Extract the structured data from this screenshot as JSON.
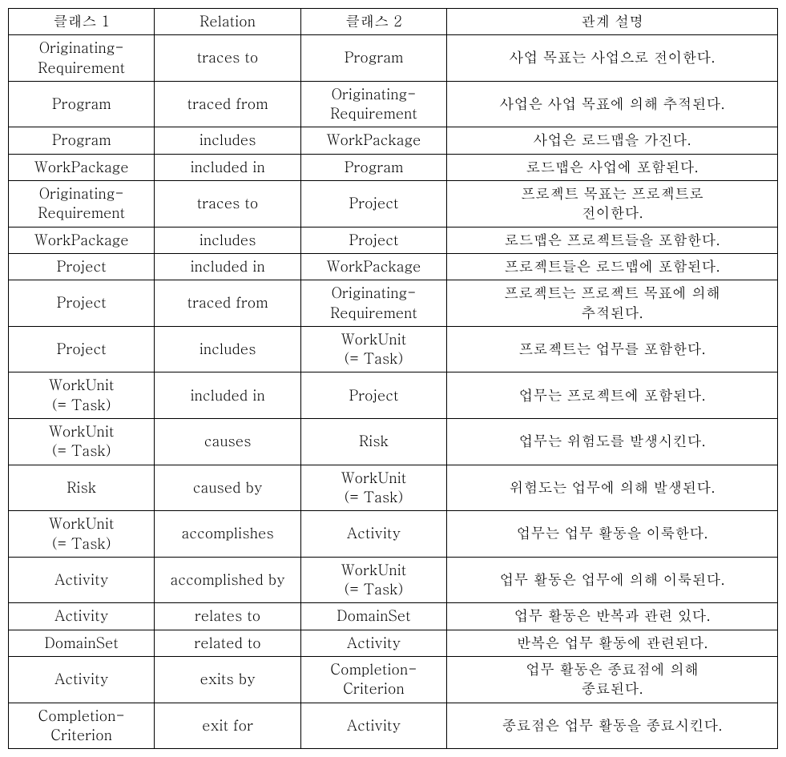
{
  "table": {
    "headers": {
      "class1": "클래스 1",
      "relation": "Relation",
      "class2": "클래스 2",
      "description": "관계 설명"
    },
    "rows": [
      {
        "class1": "Originating-\nRequirement",
        "relation": "traces to",
        "class2": "Program",
        "description": "사업 목표는 사업으로 전이한다."
      },
      {
        "class1": "Program",
        "relation": "traced from",
        "class2": "Originating-\nRequirement",
        "description": "사업은 사업 목표에 의해 추적된다."
      },
      {
        "class1": "Program",
        "relation": "includes",
        "class2": "WorkPackage",
        "description": "사업은 로드맵을 가진다."
      },
      {
        "class1": "WorkPackage",
        "relation": "included in",
        "class2": "Program",
        "description": "로드맵은 사업에 포함된다."
      },
      {
        "class1": "Originating-\nRequirement",
        "relation": "traces to",
        "class2": "Project",
        "description": "프로젝트 목표는 프로젝트로\n전이한다."
      },
      {
        "class1": "WorkPackage",
        "relation": "includes",
        "class2": "Project",
        "description": "로드맵은 프로젝트들을 포함한다."
      },
      {
        "class1": "Project",
        "relation": "included in",
        "class2": "WorkPackage",
        "description": "프로젝트들은 로드맵에 포함된다."
      },
      {
        "class1": "Project",
        "relation": "traced from",
        "class2": "Originating-\nRequirement",
        "description": "프로젝트는 프로젝트 목표에 의해\n추적된다."
      },
      {
        "class1": "Project",
        "relation": "includes",
        "class2": "WorkUnit\n(= Task)",
        "description": "프로젝트는 업무를 포함한다."
      },
      {
        "class1": "WorkUnit\n(= Task)",
        "relation": "included in",
        "class2": "Project",
        "description": "업무는 프로젝트에 포함된다."
      },
      {
        "class1": "WorkUnit\n(= Task)",
        "relation": "causes",
        "class2": "Risk",
        "description": "업무는 위험도를 발생시킨다."
      },
      {
        "class1": "Risk",
        "relation": "caused by",
        "class2": "WorkUnit\n(= Task)",
        "description": "위험도는 업무에 의해 발생된다."
      },
      {
        "class1": "WorkUnit\n(= Task)",
        "relation": "accomplishes",
        "class2": "Activity",
        "description": "업무는 업무 활동을 이룩한다."
      },
      {
        "class1": "Activity",
        "relation": "accomplished by",
        "class2": "WorkUnit\n(= Task)",
        "description": "업무 활동은 업무에 의해 이룩된다."
      },
      {
        "class1": "Activity",
        "relation": "relates to",
        "class2": "DomainSet",
        "description": "업무 활동은 반복과 관련 있다."
      },
      {
        "class1": "DomainSet",
        "relation": "related to",
        "class2": "Activity",
        "description": "반복은 업무 활동에 관련된다."
      },
      {
        "class1": "Activity",
        "relation": "exits by",
        "class2": "Completion-\nCriterion",
        "description": "업무 활동은 종료점에 의해\n종료된다."
      },
      {
        "class1": "Completion-\nCriterion",
        "relation": "exit for",
        "class2": "Activity",
        "description": "종료점은 업무 활동을 종료시킨다."
      }
    ],
    "styling": {
      "border_color": "#000000",
      "background_color": "#ffffff",
      "text_color": "#000000",
      "font_size": 18,
      "column_widths": {
        "class1": "19%",
        "relation": "19%",
        "class2": "19%",
        "description": "43%"
      }
    }
  }
}
